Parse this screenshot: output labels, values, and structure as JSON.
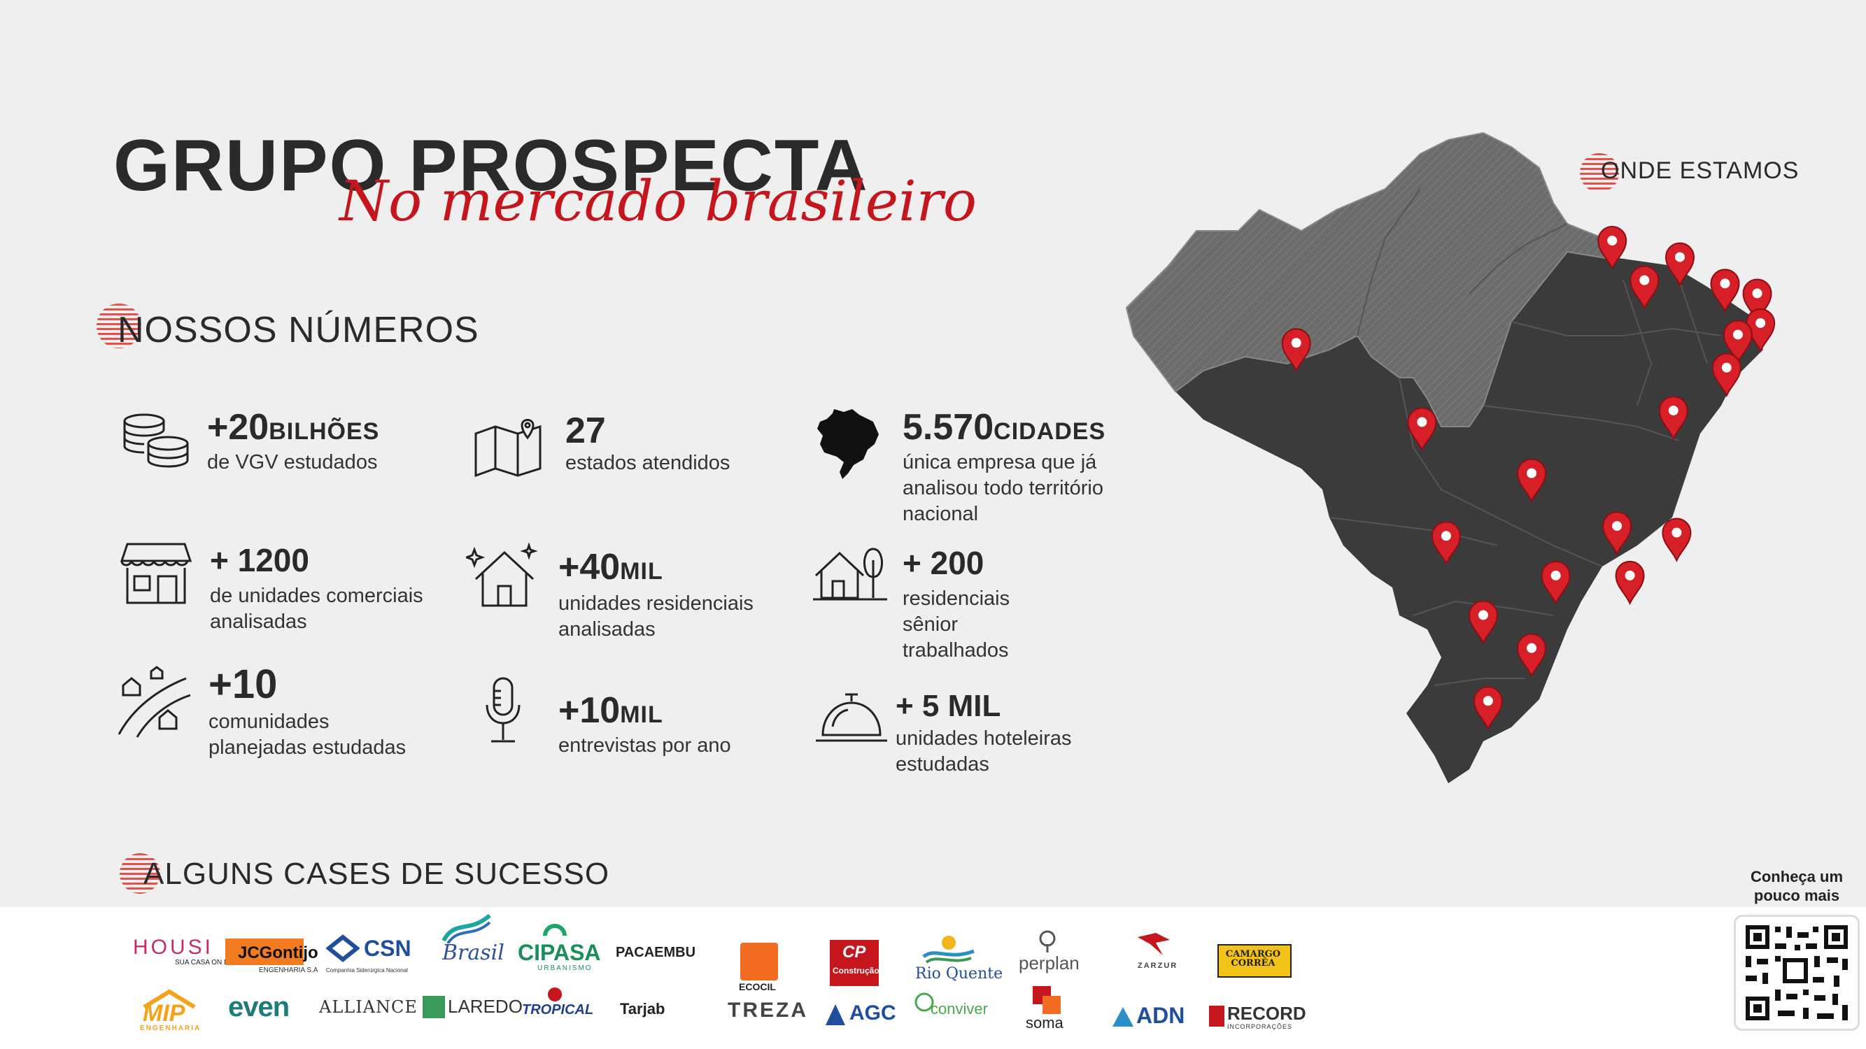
{
  "header": {
    "title": "GRUPO PROSPECTA",
    "subtitle": "No mercado brasileiro"
  },
  "sections": {
    "numbers": "NOSSOS NÚMEROS",
    "where": "ONDE ESTAMOS",
    "cases": "ALGUNS CASES DE SUCESSO"
  },
  "stats": [
    {
      "big": "+20",
      "unit": "BILHÕES",
      "desc": [
        "de VGV estudados"
      ]
    },
    {
      "big": "27",
      "unit": "",
      "desc": [
        "estados atendidos"
      ]
    },
    {
      "big": "5.570",
      "unit": "CIDADES",
      "desc": [
        "única empresa que já",
        "analisou todo território",
        "nacional"
      ]
    },
    {
      "big": "+ 1200",
      "unit": "",
      "desc": [
        "de unidades comerciais",
        "analisadas"
      ]
    },
    {
      "big": "+40",
      "unit": "MIL",
      "desc": [
        "unidades residenciais",
        "analisadas"
      ]
    },
    {
      "big": "+ 200",
      "unit": "",
      "desc": [
        "residenciais",
        "sênior",
        "trabalhados"
      ]
    },
    {
      "big": "+10",
      "unit": "",
      "desc": [
        "comunidades",
        "planejadas estudadas"
      ]
    },
    {
      "big": "+10",
      "unit": "MIL",
      "desc": [
        "entrevistas por ano"
      ]
    },
    {
      "big": "+ 5 MIL",
      "unit": "",
      "desc": [
        "unidades hoteleiras",
        "estudadas"
      ]
    }
  ],
  "logos": {
    "housi": "HOUSI",
    "housi_sub": "SUA CASA ON DEMAND.",
    "jcgontijo": "JCGontijo",
    "jcgontijo_sub": "ENGENHARIA S.A",
    "csn": "CSN",
    "csn_sub": "Companhia Siderúrgica Nacional",
    "brasil": "Brasil",
    "cipasa": "CIPASA",
    "cipasa_sub": "URBANISMO",
    "pacaembu": "PACAEMBU",
    "ecocil": "ECOCIL",
    "cp": "CP",
    "cp_sub": "Construção",
    "rioquente": "Rio Quente",
    "perplan": "perplan",
    "zarzur": "ZARZUR",
    "camargo": "CAMARGO CORRÊA",
    "mip": "MIP",
    "mip_sub": "ENGENHARIA",
    "even": "even",
    "alliance": "ALLIANCE",
    "laredo": "LAREDO",
    "tropical": "TROPICAL",
    "tarjab": "Tarjab",
    "treza": "TREZA",
    "agc": "AGC",
    "conviver": "conviver",
    "soma": "soma",
    "adn": "ADN",
    "record": "RECORD",
    "record_sub": "INCORPORAÇÕES"
  },
  "qr": {
    "label_1": "Conheça um",
    "label_2": "pouco mais"
  },
  "colors": {
    "accent": "#c4161c",
    "map_north": "#6b6b6b",
    "map_rest": "#3b3b3b",
    "pin": "#d61f26"
  },
  "pins": [
    {
      "lon": -44.3,
      "lat": -2.6
    },
    {
      "lon": -40.1,
      "lat": -3.6
    },
    {
      "lon": -37.3,
      "lat": -5.2
    },
    {
      "lon": -35.3,
      "lat": -5.8
    },
    {
      "lon": -35.1,
      "lat": -7.6
    },
    {
      "lon": -36.5,
      "lat": -8.3
    },
    {
      "lon": -37.2,
      "lat": -10.3
    },
    {
      "lon": -42.3,
      "lat": -5.0
    },
    {
      "lon": -40.5,
      "lat": -12.9
    },
    {
      "lon": -63.9,
      "lat": -8.8
    },
    {
      "lon": -56.1,
      "lat": -13.6
    },
    {
      "lon": -49.3,
      "lat": -16.7
    },
    {
      "lon": -44.0,
      "lat": -19.9
    },
    {
      "lon": -40.3,
      "lat": -20.3
    },
    {
      "lon": -54.6,
      "lat": -20.5
    },
    {
      "lon": -47.8,
      "lat": -22.9
    },
    {
      "lon": -43.2,
      "lat": -22.9
    },
    {
      "lon": -52.3,
      "lat": -25.3
    },
    {
      "lon": -49.3,
      "lat": -27.3
    },
    {
      "lon": -52.0,
      "lat": -30.5
    }
  ]
}
